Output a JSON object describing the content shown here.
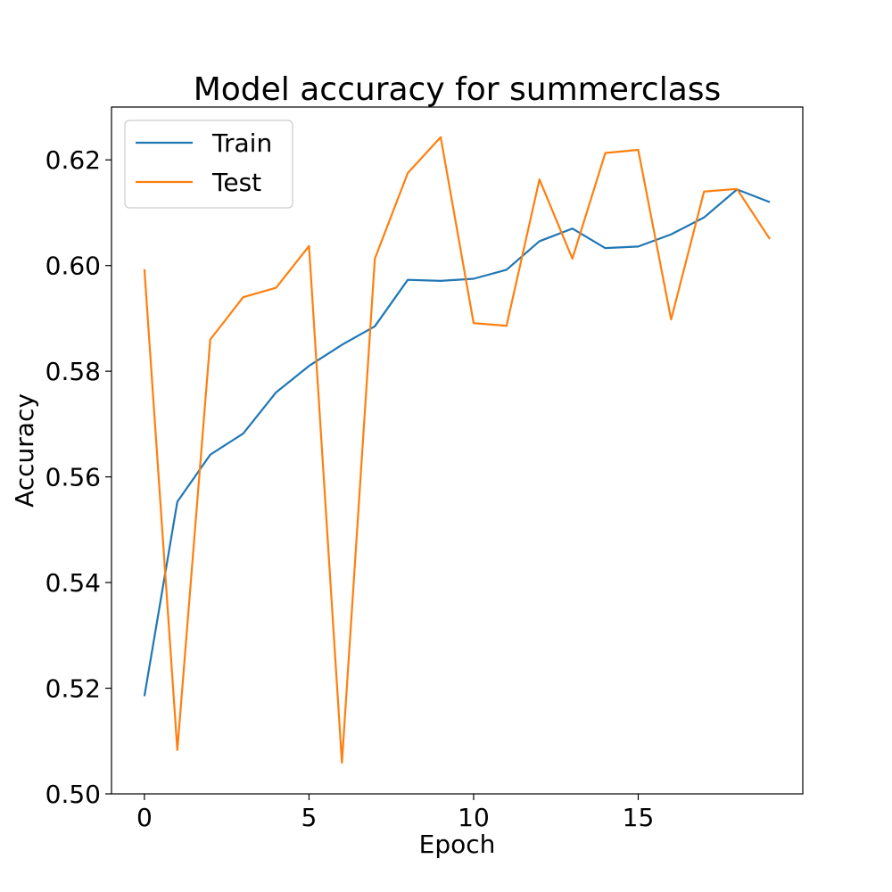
{
  "chart_data": {
    "type": "line",
    "title": "Model accuracy for summerclass",
    "xlabel": "Epoch",
    "ylabel": "Accuracy",
    "xlim": [
      -1,
      20
    ],
    "ylim": [
      0.5,
      0.63
    ],
    "xticks": [
      0,
      5,
      10,
      15
    ],
    "xtick_labels": [
      "0",
      "5",
      "10",
      "15"
    ],
    "yticks": [
      0.5,
      0.52,
      0.54,
      0.56,
      0.58,
      0.6,
      0.62
    ],
    "ytick_labels": [
      "0.50",
      "0.52",
      "0.54",
      "0.56",
      "0.58",
      "0.60",
      "0.62"
    ],
    "grid": false,
    "legend_position": "top-left",
    "x": [
      0,
      1,
      2,
      3,
      4,
      5,
      6,
      7,
      8,
      9,
      10,
      11,
      12,
      13,
      14,
      15,
      16,
      17,
      18,
      19
    ],
    "series": [
      {
        "name": "Train",
        "color": "#1f77b4",
        "values": [
          0.5185,
          0.5553,
          0.5642,
          0.5682,
          0.576,
          0.581,
          0.585,
          0.5885,
          0.5973,
          0.5971,
          0.5975,
          0.5992,
          0.6046,
          0.607,
          0.6033,
          0.6036,
          0.6059,
          0.6091,
          0.6144,
          0.612
        ]
      },
      {
        "name": "Test",
        "color": "#ff7f0e",
        "values": [
          0.5993,
          0.5083,
          0.586,
          0.594,
          0.5958,
          0.6037,
          0.5059,
          0.6013,
          0.6175,
          0.6243,
          0.5891,
          0.5886,
          0.6163,
          0.6013,
          0.6213,
          0.6219,
          0.5898,
          0.614,
          0.6145,
          0.605
        ]
      }
    ]
  }
}
